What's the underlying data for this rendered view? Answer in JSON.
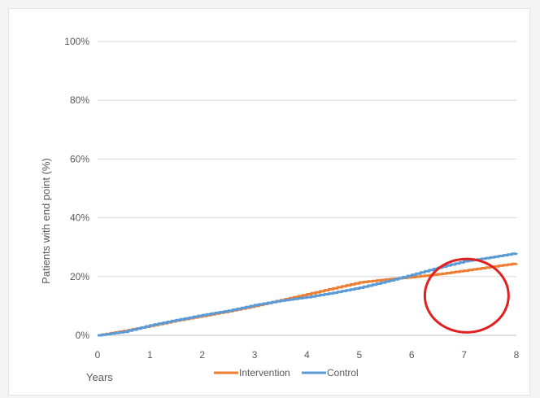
{
  "chart_data": {
    "type": "line",
    "title": "",
    "xlabel": "Years",
    "ylabel": "Patients with end point (%)",
    "xlim": [
      0,
      8
    ],
    "ylim": [
      0,
      100
    ],
    "x_ticks": [
      "0",
      "1",
      "2",
      "3",
      "4",
      "5",
      "6",
      "7",
      "8"
    ],
    "y_ticks": [
      "0%",
      "20%",
      "40%",
      "60%",
      "80%",
      "100%"
    ],
    "grid": "horizontal",
    "legend_position": "bottom",
    "series": [
      {
        "name": "Intervention",
        "color": "#ED7D31",
        "x": [
          0,
          0.5,
          1,
          1.5,
          2,
          2.5,
          3,
          3.5,
          4,
          4.5,
          5,
          5.5,
          6,
          6.5,
          7,
          7.5,
          8
        ],
        "y": [
          0,
          1.5,
          3.2,
          5,
          6.6,
          8.2,
          10,
          12,
          14,
          16,
          18,
          19,
          19.8,
          20.8,
          22,
          23.3,
          24.5
        ]
      },
      {
        "name": "Control",
        "color": "#5B9BD5",
        "x": [
          0,
          0.5,
          1,
          1.5,
          2,
          2.5,
          3,
          3.5,
          4,
          4.5,
          5,
          5.5,
          6,
          6.5,
          7,
          7.5,
          8
        ],
        "y": [
          0,
          1.2,
          3.4,
          5.2,
          6.9,
          8.4,
          10.3,
          11.8,
          13,
          14.5,
          16.2,
          18.3,
          20.6,
          23,
          25.2,
          26.5,
          28
        ]
      }
    ],
    "annotations": [
      {
        "type": "ellipse",
        "color": "#E02020",
        "cx": 7.05,
        "cy": 13.5,
        "rx": 0.8,
        "ry": 12.5
      }
    ]
  }
}
